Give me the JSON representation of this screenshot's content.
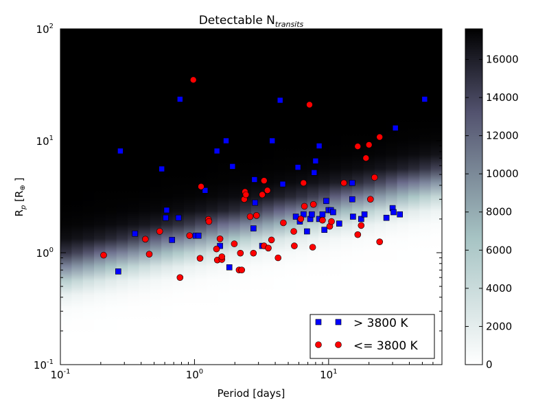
{
  "chart_data": {
    "type": "scatter",
    "title_main": "Detectable N",
    "title_sub": "transits",
    "xlabel": "Period [days]",
    "ylabel_main": "R",
    "ylabel_sub": "p",
    "ylabel_bracket": "[R",
    "ylabel_unit": "⊕",
    "ylabel_close": "]",
    "xscale": "log",
    "yscale": "log",
    "xlim": [
      0.1,
      70
    ],
    "ylim": [
      0.1,
      100
    ],
    "x_ticks": [
      {
        "base": "10",
        "exp": "-1",
        "value": 0.1
      },
      {
        "base": "10",
        "exp": "0",
        "value": 1
      },
      {
        "base": "10",
        "exp": "1",
        "value": 10
      }
    ],
    "y_ticks": [
      {
        "base": "10",
        "exp": "-1",
        "value": 0.1
      },
      {
        "base": "10",
        "exp": "0",
        "value": 1
      },
      {
        "base": "10",
        "exp": "1",
        "value": 10
      },
      {
        "base": "10",
        "exp": "2",
        "value": 100
      }
    ],
    "background": {
      "description_colormap": "bone_r",
      "colors": [
        "#ffffff",
        "#a7c4c4",
        "#6b6b8c",
        "#000000"
      ]
    },
    "colorbar": {
      "min": 0,
      "max": 17600,
      "ticks": [
        "0",
        "2000",
        "4000",
        "6000",
        "8000",
        "10000",
        "12000",
        "14000",
        "16000"
      ],
      "tick_values": [
        0,
        2000,
        4000,
        6000,
        8000,
        10000,
        12000,
        14000,
        16000
      ]
    },
    "legend_position": "lower-right",
    "series": [
      {
        "name": "> 3800 K",
        "marker": "square",
        "color": "#0000ff",
        "points": [
          [
            0.27,
            0.68
          ],
          [
            0.28,
            8.1
          ],
          [
            0.36,
            1.48
          ],
          [
            0.57,
            5.6
          ],
          [
            0.61,
            2.05
          ],
          [
            0.62,
            2.4
          ],
          [
            0.68,
            1.3
          ],
          [
            0.76,
            2.05
          ],
          [
            0.78,
            23.5
          ],
          [
            1.02,
            1.42
          ],
          [
            1.07,
            1.42
          ],
          [
            1.2,
            3.6
          ],
          [
            1.47,
            8.1
          ],
          [
            1.55,
            1.15
          ],
          [
            1.72,
            10.0
          ],
          [
            1.82,
            0.74
          ],
          [
            1.92,
            5.9
          ],
          [
            2.75,
            1.65
          ],
          [
            2.8,
            4.5
          ],
          [
            2.83,
            2.8
          ],
          [
            3.2,
            1.15
          ],
          [
            3.8,
            10.0
          ],
          [
            4.35,
            23.0
          ],
          [
            4.55,
            4.1
          ],
          [
            5.7,
            2.1
          ],
          [
            5.9,
            5.8
          ],
          [
            6.1,
            1.9
          ],
          [
            6.5,
            2.2
          ],
          [
            6.9,
            1.55
          ],
          [
            7.3,
            2.0
          ],
          [
            7.5,
            2.2
          ],
          [
            7.8,
            5.2
          ],
          [
            8.0,
            6.6
          ],
          [
            8.5,
            9.0
          ],
          [
            8.5,
            2.0
          ],
          [
            9.0,
            2.2
          ],
          [
            9.3,
            1.6
          ],
          [
            9.6,
            2.9
          ],
          [
            10.0,
            2.4
          ],
          [
            10.4,
            2.4
          ],
          [
            10.8,
            2.3
          ],
          [
            12.0,
            1.82
          ],
          [
            15.0,
            3.0
          ],
          [
            15.0,
            4.2
          ],
          [
            15.2,
            2.1
          ],
          [
            17.5,
            2.0
          ],
          [
            18.5,
            2.2
          ],
          [
            27.0,
            2.05
          ],
          [
            30.0,
            2.5
          ],
          [
            30.5,
            2.3
          ],
          [
            31.5,
            13.0
          ],
          [
            34.0,
            2.2
          ],
          [
            52.0,
            23.5
          ]
        ]
      },
      {
        "name": "<= 3800 K",
        "marker": "circle",
        "color": "#ff0000",
        "points": [
          [
            0.21,
            0.95
          ],
          [
            0.43,
            1.32
          ],
          [
            0.46,
            0.97
          ],
          [
            0.55,
            1.55
          ],
          [
            0.78,
            0.6
          ],
          [
            0.92,
            1.42
          ],
          [
            0.98,
            35.0
          ],
          [
            1.1,
            0.89
          ],
          [
            1.12,
            3.9
          ],
          [
            1.27,
            1.98
          ],
          [
            1.28,
            1.9
          ],
          [
            1.46,
            1.08
          ],
          [
            1.48,
            0.86
          ],
          [
            1.55,
            1.33
          ],
          [
            1.6,
            0.87
          ],
          [
            1.6,
            0.92
          ],
          [
            1.98,
            1.2
          ],
          [
            2.15,
            0.7
          ],
          [
            2.2,
            0.99
          ],
          [
            2.25,
            0.7
          ],
          [
            2.35,
            3.0
          ],
          [
            2.38,
            3.5
          ],
          [
            2.42,
            3.3
          ],
          [
            2.6,
            2.1
          ],
          [
            2.75,
            0.99
          ],
          [
            2.9,
            2.15
          ],
          [
            3.2,
            3.3
          ],
          [
            3.3,
            4.4
          ],
          [
            3.3,
            1.15
          ],
          [
            3.5,
            3.6
          ],
          [
            3.55,
            1.1
          ],
          [
            3.75,
            1.3
          ],
          [
            4.2,
            0.9
          ],
          [
            4.6,
            1.85
          ],
          [
            5.5,
            1.55
          ],
          [
            5.55,
            1.15
          ],
          [
            6.2,
            2.0
          ],
          [
            6.5,
            4.2
          ],
          [
            6.6,
            2.6
          ],
          [
            7.2,
            21.0
          ],
          [
            7.6,
            1.12
          ],
          [
            7.7,
            2.7
          ],
          [
            9.0,
            1.95
          ],
          [
            10.2,
            1.72
          ],
          [
            10.5,
            1.9
          ],
          [
            13.0,
            4.2
          ],
          [
            16.5,
            1.45
          ],
          [
            16.5,
            8.9
          ],
          [
            17.5,
            1.75
          ],
          [
            19.0,
            7.0
          ],
          [
            20.0,
            9.2
          ],
          [
            20.5,
            3.0
          ],
          [
            22.0,
            4.7
          ],
          [
            24.0,
            1.25
          ],
          [
            24.0,
            10.8
          ]
        ]
      }
    ]
  }
}
